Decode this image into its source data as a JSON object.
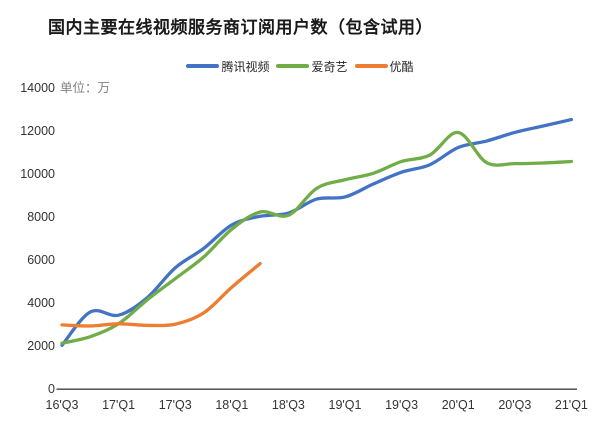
{
  "title": "国内主要在线视频服务商订阅用户数（包含试用）",
  "unit_label": "单位：万",
  "colors": {
    "tencent_video": "#4472C4",
    "iqiyi": "#70AD47",
    "youku": "#ED7D31",
    "axis_text": "#333333",
    "unit_text": "#7F7F7F",
    "axis_line": "#404040",
    "title_text": "#1A1A1A",
    "background": "#FFFFFF"
  },
  "chart_data": {
    "type": "line",
    "title": "国内主要在线视频服务商订阅用户数（包含试用）",
    "unit": "万",
    "smoothed_lines": true,
    "grid": false,
    "legend_position": "top-center",
    "ylim": [
      0,
      14000
    ],
    "y_ticks": [
      0,
      2000,
      4000,
      6000,
      8000,
      10000,
      12000,
      14000
    ],
    "categories": [
      "16'Q3",
      "16'Q4",
      "17'Q1",
      "17'Q2",
      "17'Q3",
      "17'Q4",
      "18'Q1",
      "18'Q2",
      "18'Q3",
      "18'Q4",
      "19'Q1",
      "19'Q2",
      "19'Q3",
      "19'Q4",
      "20'Q1",
      "20'Q2",
      "20'Q3",
      "20'Q4",
      "21'Q1"
    ],
    "x_axis_labels_shown": [
      "16'Q3",
      "17'Q1",
      "17'Q3",
      "18'Q1",
      "18'Q3",
      "19'Q1",
      "19'Q3",
      "20'Q1",
      "20'Q3",
      "21'Q1"
    ],
    "series": [
      {
        "name": "腾讯视频",
        "color": "#4472C4",
        "values": [
          2000,
          3550,
          3400,
          4200,
          5600,
          6500,
          7600,
          8000,
          8150,
          8800,
          8900,
          9500,
          10050,
          10400,
          11200,
          11500,
          11900,
          12200,
          12500
        ]
      },
      {
        "name": "爱奇艺",
        "color": "#70AD47",
        "values": [
          2100,
          2400,
          3000,
          4100,
          5100,
          6100,
          7400,
          8200,
          8050,
          9300,
          9700,
          10000,
          10550,
          10850,
          11900,
          10500,
          10450,
          10480,
          10550
        ]
      },
      {
        "name": "优酷",
        "color": "#ED7D31",
        "values": [
          2950,
          2900,
          3000,
          2930,
          2980,
          3500,
          4700,
          5800,
          null,
          null,
          null,
          null,
          null,
          null,
          null,
          null,
          null,
          null,
          null
        ]
      }
    ]
  }
}
